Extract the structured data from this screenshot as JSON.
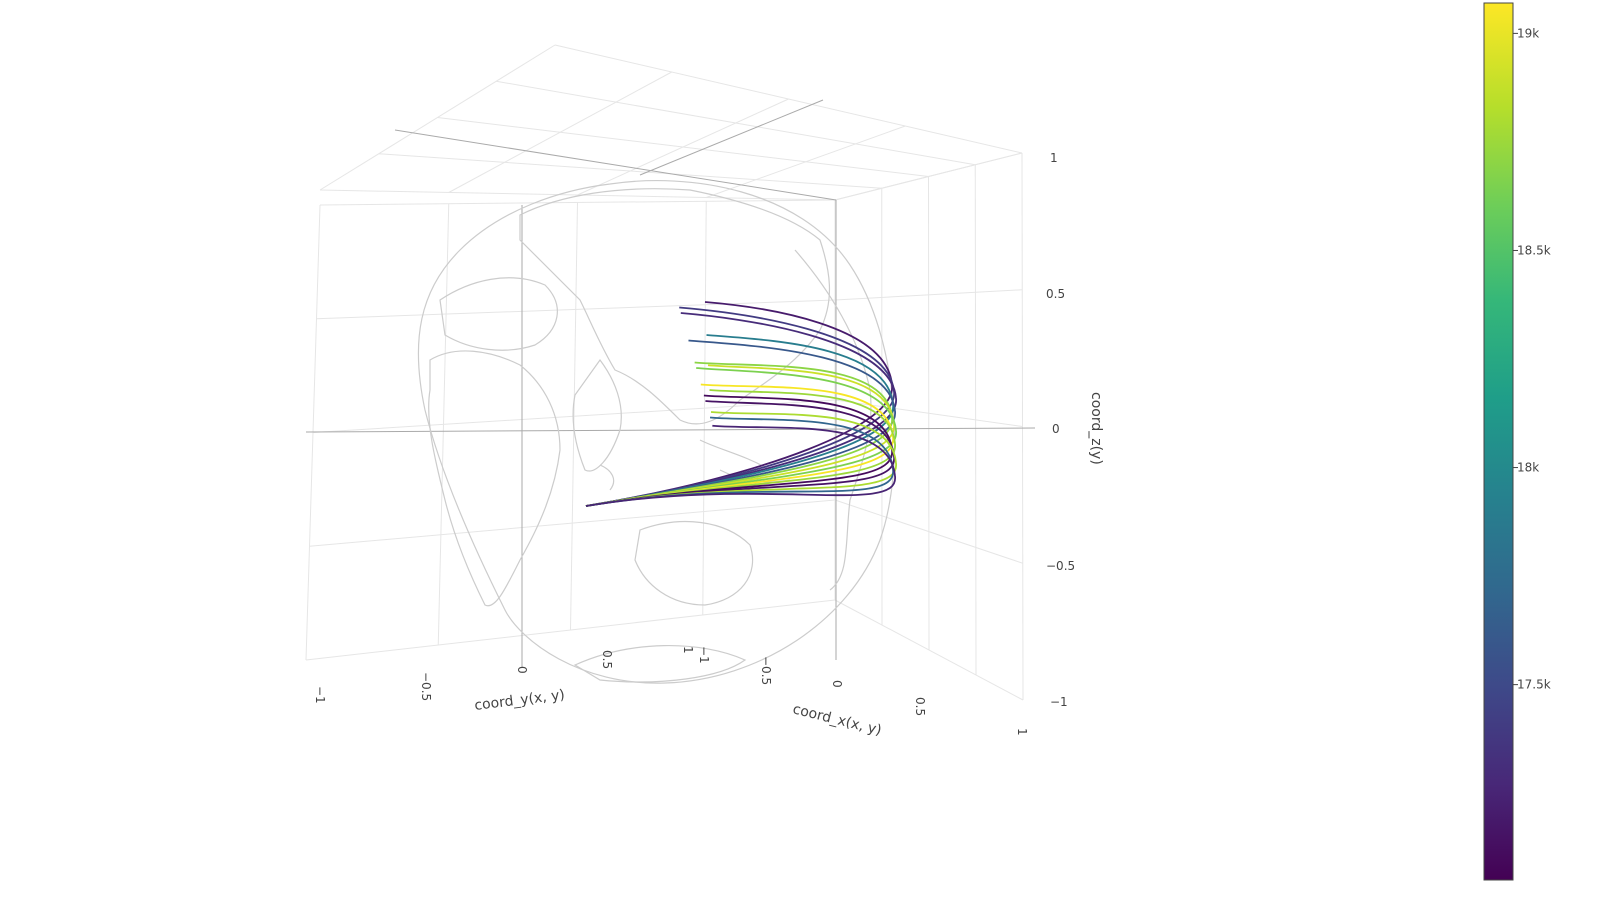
{
  "chart_data": {
    "type": "line",
    "subtype": "3d-scatter-lines-on-globe",
    "title": "",
    "axes": {
      "x": {
        "title": "coord_x(x, y)",
        "range": [
          -1,
          1
        ],
        "ticks": [
          "−1",
          "−0.5",
          "0",
          "0.5",
          "1"
        ]
      },
      "y": {
        "title": "coord_y(x, y)",
        "range": [
          -1,
          1
        ],
        "ticks": [
          "−1",
          "−0.5",
          "0",
          "0.5",
          "1"
        ]
      },
      "z": {
        "title": "coord_z(y)",
        "range": [
          -1,
          1
        ],
        "ticks": [
          "−1",
          "−0.5",
          "0",
          "0.5",
          "1"
        ]
      }
    },
    "grid": true,
    "colorbar": {
      "colorscale": "Viridis",
      "range": [
        17050,
        19070
      ],
      "ticks": [
        {
          "value": 17500,
          "label": "17.5k"
        },
        {
          "value": 18000,
          "label": "18k"
        },
        {
          "value": 18500,
          "label": "18.5k"
        },
        {
          "value": 19000,
          "label": "19k"
        }
      ],
      "placement": "right"
    },
    "globe": {
      "coastline_color": "#cccccc"
    },
    "trajectories": [
      {
        "value": 17200,
        "end_lat": 48
      },
      {
        "value": 17400,
        "end_lat": 46
      },
      {
        "value": 17300,
        "end_lat": 44
      },
      {
        "value": 17900,
        "end_lat": 36
      },
      {
        "value": 17600,
        "end_lat": 34
      },
      {
        "value": 18700,
        "end_lat": 26
      },
      {
        "value": 18900,
        "end_lat": 25
      },
      {
        "value": 18650,
        "end_lat": 24
      },
      {
        "value": 19050,
        "end_lat": 18
      },
      {
        "value": 18750,
        "end_lat": 16
      },
      {
        "value": 17100,
        "end_lat": 14
      },
      {
        "value": 17150,
        "end_lat": 12
      },
      {
        "value": 18800,
        "end_lat": 8
      },
      {
        "value": 17700,
        "end_lat": 6
      },
      {
        "value": 17250,
        "end_lat": 3
      }
    ]
  }
}
